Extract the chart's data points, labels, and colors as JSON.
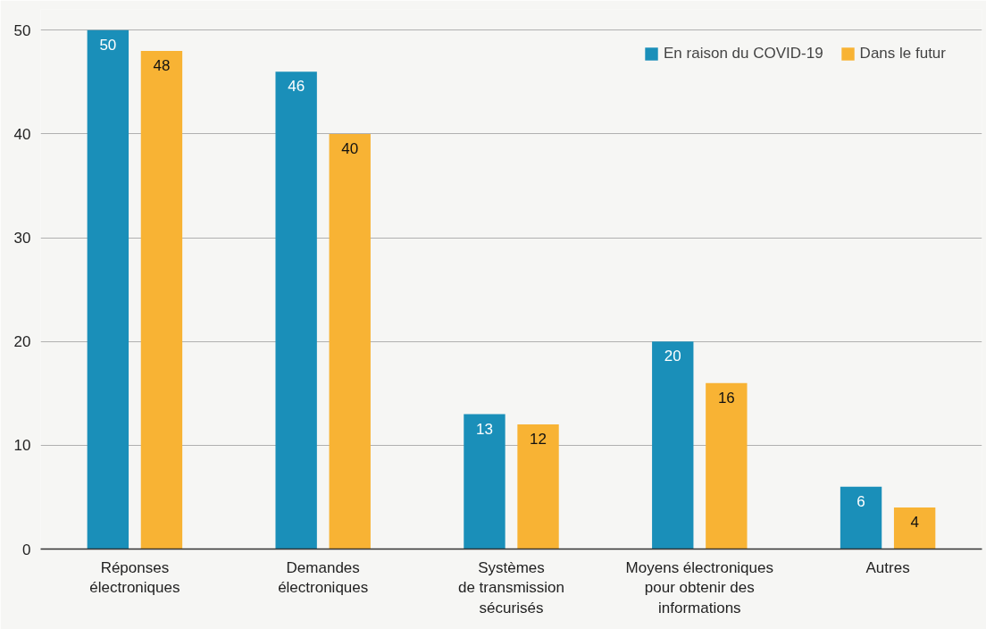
{
  "chart_data": {
    "type": "bar",
    "categories": [
      "Réponses\nélectroniques",
      "Demandes\nélectroniques",
      "Systèmes\nde transmission\nsécurisés",
      "Moyens électroniques\npour obtenir des\ninformations",
      "Autres"
    ],
    "series": [
      {
        "name": "En raison du COVID-19",
        "color": "#1a8fb9",
        "values": [
          50,
          46,
          13,
          20,
          6
        ]
      },
      {
        "name": "Dans le futur",
        "color": "#f8b334",
        "values": [
          48,
          40,
          12,
          16,
          4
        ]
      }
    ],
    "ylim": [
      0,
      52
    ],
    "yticks": [
      0,
      10,
      20,
      30,
      40,
      50
    ],
    "grid": "y",
    "legend": "top right",
    "data_labels": true
  }
}
